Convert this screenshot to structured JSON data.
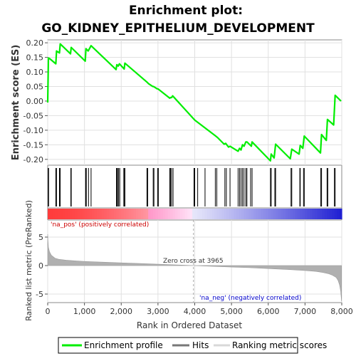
{
  "colors": {
    "enrichment": "#00ee00",
    "hits": "#000000",
    "metric_fill": "#b0b0b0",
    "pos_label": "#cc0000",
    "neg_label": "#0000cc",
    "grid": "#e0e0e0"
  },
  "chart_data": [
    {
      "type": "line",
      "title": "Enrichment plot:",
      "subtitle": "GO_KIDNEY_EPITHELIUM_DEVELOPMENT",
      "ylabel": "Enrichment score (ES)",
      "xlim": [
        0,
        8000
      ],
      "ylim": [
        -0.22,
        0.21
      ],
      "yticks": [
        "0.20",
        "0.15",
        "0.10",
        "0.05",
        "0.00",
        "-0.05",
        "-0.10",
        "-0.15",
        "-0.20"
      ],
      "grid": true,
      "series": [
        {
          "name": "Enrichment profile",
          "x": [
            0,
            20,
            60,
            220,
            240,
            320,
            340,
            620,
            640,
            1020,
            1040,
            1100,
            1120,
            1180,
            1860,
            1880,
            1920,
            1950,
            2080,
            2100,
            2700,
            2740,
            2860,
            2880,
            2980,
            3000,
            3320,
            3340,
            3370,
            3400,
            4000,
            4550,
            4620,
            4800,
            4840,
            4920,
            4960,
            5180,
            5220,
            5260,
            5300,
            5340,
            5390,
            5420,
            5540,
            5560,
            6060,
            6080,
            6160,
            6200,
            6600,
            6640,
            6840,
            6870,
            6940,
            6980,
            7420,
            7450,
            7580,
            7610,
            7780,
            7820,
            7980
          ],
          "y": [
            -0.005,
            0.148,
            0.145,
            0.128,
            0.172,
            0.165,
            0.196,
            0.162,
            0.184,
            0.137,
            0.18,
            0.172,
            0.176,
            0.19,
            0.108,
            0.125,
            0.12,
            0.128,
            0.11,
            0.13,
            0.065,
            0.06,
            0.05,
            0.05,
            0.042,
            0.042,
            0.01,
            0.012,
            0.012,
            0.018,
            -0.065,
            -0.118,
            -0.125,
            -0.148,
            -0.145,
            -0.158,
            -0.155,
            -0.172,
            -0.162,
            -0.168,
            -0.15,
            -0.155,
            -0.14,
            -0.14,
            -0.155,
            -0.14,
            -0.205,
            -0.182,
            -0.195,
            -0.148,
            -0.198,
            -0.165,
            -0.182,
            -0.152,
            -0.162,
            -0.12,
            -0.178,
            -0.115,
            -0.135,
            -0.063,
            -0.082,
            0.02,
            0.0
          ]
        }
      ]
    },
    {
      "type": "scatter",
      "series": [
        {
          "name": "Hits",
          "x": [
            15,
            25,
            220,
            240,
            320,
            340,
            630,
            640,
            1030,
            1040,
            1050,
            1110,
            1180,
            1870,
            1880,
            1900,
            1930,
            1960,
            2070,
            2090,
            2100,
            2700,
            2720,
            2870,
            2890,
            2990,
            3010,
            3320,
            3340,
            3370,
            3410,
            3980,
            4000,
            4080,
            4280,
            4560,
            4600,
            4820,
            4860,
            4960,
            5180,
            5220,
            5260,
            5300,
            5340,
            5390,
            5420,
            5520,
            5560,
            6060,
            6080,
            6180,
            6200,
            6620,
            6640,
            6860,
            6870,
            6960,
            6980,
            7430,
            7450,
            7600,
            7620,
            7800,
            7820
          ]
        }
      ]
    },
    {
      "type": "area",
      "ylabel": "Ranked list metric (PreRanked)",
      "xlabel": "Rank in Ordered Dataset",
      "xlim": [
        0,
        8000
      ],
      "ylim": [
        -6.5,
        8
      ],
      "yticks": [
        "5",
        "0",
        "-5"
      ],
      "xticks": [
        "0",
        "1,000",
        "2,000",
        "3,000",
        "4,000",
        "5,000",
        "6,000",
        "7,000",
        "8,000"
      ],
      "grid": true,
      "zero_cross": 3965,
      "series": [
        {
          "name": "Ranking metric scores",
          "x": [
            0,
            5,
            20,
            50,
            100,
            200,
            300,
            500,
            800,
            1000,
            1500,
            2000,
            2500,
            3000,
            3500,
            3965,
            4500,
            5000,
            5500,
            6000,
            6500,
            7000,
            7300,
            7500,
            7650,
            7750,
            7850,
            7900,
            7940,
            7970,
            7985,
            7995
          ],
          "y": [
            5.5,
            4.5,
            3.2,
            2.4,
            1.8,
            1.3,
            1.1,
            0.95,
            0.8,
            0.72,
            0.6,
            0.48,
            0.36,
            0.24,
            0.12,
            0.0,
            -0.14,
            -0.26,
            -0.38,
            -0.52,
            -0.68,
            -0.86,
            -1.02,
            -1.22,
            -1.45,
            -1.7,
            -2.1,
            -2.6,
            -3.4,
            -4.5,
            -5.5,
            -6.3
          ]
        }
      ]
    }
  ],
  "annotations": {
    "pos_label": "'na_pos' (positively correlated)",
    "neg_label": "'na_neg' (negatively correlated)",
    "zero_cross_label": "Zero cross at 3965"
  },
  "legend": {
    "placement": "bottom",
    "items": [
      {
        "label": "Enrichment profile",
        "kind": "line"
      },
      {
        "label": "Hits",
        "kind": "hit"
      },
      {
        "label": "Ranking metric scores",
        "kind": "metric"
      }
    ]
  }
}
